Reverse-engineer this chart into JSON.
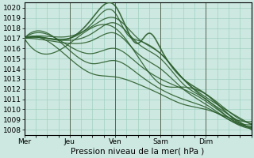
{
  "xlabel": "Pression niveau de la mer( hPa )",
  "ylim": [
    1007.5,
    1020.5
  ],
  "yticks": [
    1008,
    1009,
    1010,
    1011,
    1012,
    1013,
    1014,
    1015,
    1016,
    1017,
    1018,
    1019,
    1020
  ],
  "day_labels": [
    "Mer",
    "Jeu",
    "Ven",
    "Sam",
    "Dim"
  ],
  "day_positions": [
    0,
    24,
    48,
    72,
    96
  ],
  "total_hours": 120,
  "bg_color": "#cce8e0",
  "grid_color": "#99ccbb",
  "line_color": "#2d5e2d",
  "vline_color": "#556655",
  "tick_fontsize": 6.5,
  "label_fontsize": 7.5,
  "curves": [
    {
      "key_hours": [
        0,
        12,
        24,
        36,
        48,
        54,
        60,
        66,
        72,
        84,
        96,
        108,
        120
      ],
      "key_vals": [
        1017,
        1017,
        1017,
        1019,
        1020.2,
        1018,
        1016.5,
        1017.5,
        1016,
        1013,
        1011.5,
        1009.5,
        1008.2
      ],
      "lw": 1.2
    },
    {
      "key_hours": [
        0,
        12,
        24,
        36,
        48,
        54,
        60,
        72,
        84,
        96,
        108,
        120
      ],
      "key_vals": [
        1017,
        1017,
        1017,
        1018.5,
        1019.5,
        1017.5,
        1016.8,
        1015.5,
        1013,
        1011.0,
        1009.5,
        1008.0
      ],
      "lw": 0.9
    },
    {
      "key_hours": [
        0,
        12,
        24,
        36,
        48,
        60,
        72,
        84,
        96,
        108,
        120
      ],
      "key_vals": [
        1017,
        1017.2,
        1017.2,
        1018.2,
        1019.0,
        1017,
        1015.5,
        1013,
        1011.2,
        1009.8,
        1008.5
      ],
      "lw": 0.9
    },
    {
      "key_hours": [
        0,
        12,
        24,
        36,
        48,
        60,
        72,
        84,
        96,
        108,
        120
      ],
      "key_vals": [
        1017,
        1017,
        1016.8,
        1017.5,
        1018.5,
        1016.5,
        1015,
        1012.5,
        1011.0,
        1009.2,
        1008.3
      ],
      "lw": 0.9
    },
    {
      "key_hours": [
        0,
        12,
        24,
        36,
        48,
        60,
        72,
        84,
        96,
        108,
        120
      ],
      "key_vals": [
        1017,
        1016.8,
        1016.5,
        1016.8,
        1017.5,
        1015.5,
        1014,
        1012,
        1010.5,
        1009.0,
        1008.1
      ],
      "lw": 0.9
    },
    {
      "key_hours": [
        0,
        24,
        36,
        48,
        60,
        72,
        84,
        96,
        108,
        120
      ],
      "key_vals": [
        1017,
        1016.2,
        1015.5,
        1016.0,
        1014.5,
        1013,
        1012,
        1010.8,
        1009.2,
        1008.5
      ],
      "lw": 0.9
    },
    {
      "key_hours": [
        0,
        24,
        36,
        48,
        60,
        72,
        84,
        96,
        108,
        120
      ],
      "key_vals": [
        1017,
        1015.8,
        1014.5,
        1014.8,
        1013.5,
        1012,
        1011,
        1010.2,
        1009.0,
        1008.3
      ],
      "lw": 0.9
    },
    {
      "key_hours": [
        0,
        24,
        36,
        48,
        60,
        72,
        84,
        96,
        108,
        120
      ],
      "key_vals": [
        1017,
        1015.0,
        1013.5,
        1013.2,
        1012.5,
        1011.5,
        1010.5,
        1010.0,
        1009.2,
        1008.8
      ],
      "lw": 0.9
    },
    {
      "key_hours": [
        0,
        24,
        48,
        72,
        84,
        96,
        108,
        120
      ],
      "key_vals": [
        1017,
        1016.5,
        1018.0,
        1012.5,
        1012.2,
        1011.5,
        1009.8,
        1008.6
      ],
      "lw": 0.9
    }
  ]
}
